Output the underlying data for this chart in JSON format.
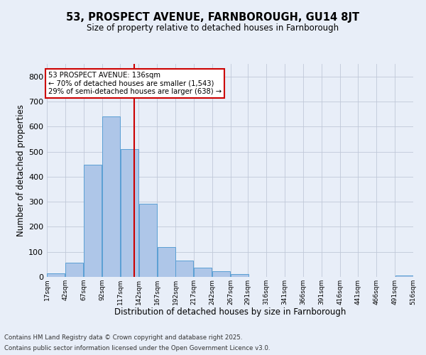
{
  "title": "53, PROSPECT AVENUE, FARNBOROUGH, GU14 8JT",
  "subtitle": "Size of property relative to detached houses in Farnborough",
  "xlabel": "Distribution of detached houses by size in Farnborough",
  "ylabel": "Number of detached properties",
  "bar_color": "#aec6e8",
  "bar_edge_color": "#5a9fd4",
  "background_color": "#e8eef8",
  "grid_color": "#c0c8d8",
  "vline_x": 136,
  "vline_color": "#cc0000",
  "bin_edges": [
    17,
    42,
    67,
    92,
    117,
    142,
    167,
    192,
    217,
    242,
    267,
    291,
    316,
    341,
    366,
    391,
    416,
    441,
    466,
    491,
    516
  ],
  "bar_heights": [
    13,
    58,
    448,
    640,
    510,
    292,
    120,
    65,
    38,
    23,
    12,
    0,
    0,
    0,
    0,
    0,
    0,
    0,
    0,
    5
  ],
  "tick_labels": [
    "17sqm",
    "42sqm",
    "67sqm",
    "92sqm",
    "117sqm",
    "142sqm",
    "167sqm",
    "192sqm",
    "217sqm",
    "242sqm",
    "267sqm",
    "291sqm",
    "316sqm",
    "341sqm",
    "366sqm",
    "391sqm",
    "416sqm",
    "441sqm",
    "466sqm",
    "491sqm",
    "516sqm"
  ],
  "annotation_title": "53 PROSPECT AVENUE: 136sqm",
  "annotation_line1": "← 70% of detached houses are smaller (1,543)",
  "annotation_line2": "29% of semi-detached houses are larger (638) →",
  "annotation_box_color": "#ffffff",
  "annotation_box_edge": "#cc0000",
  "footnote1": "Contains HM Land Registry data © Crown copyright and database right 2025.",
  "footnote2": "Contains public sector information licensed under the Open Government Licence v3.0.",
  "ylim": [
    0,
    850
  ],
  "yticks": [
    0,
    100,
    200,
    300,
    400,
    500,
    600,
    700,
    800
  ]
}
